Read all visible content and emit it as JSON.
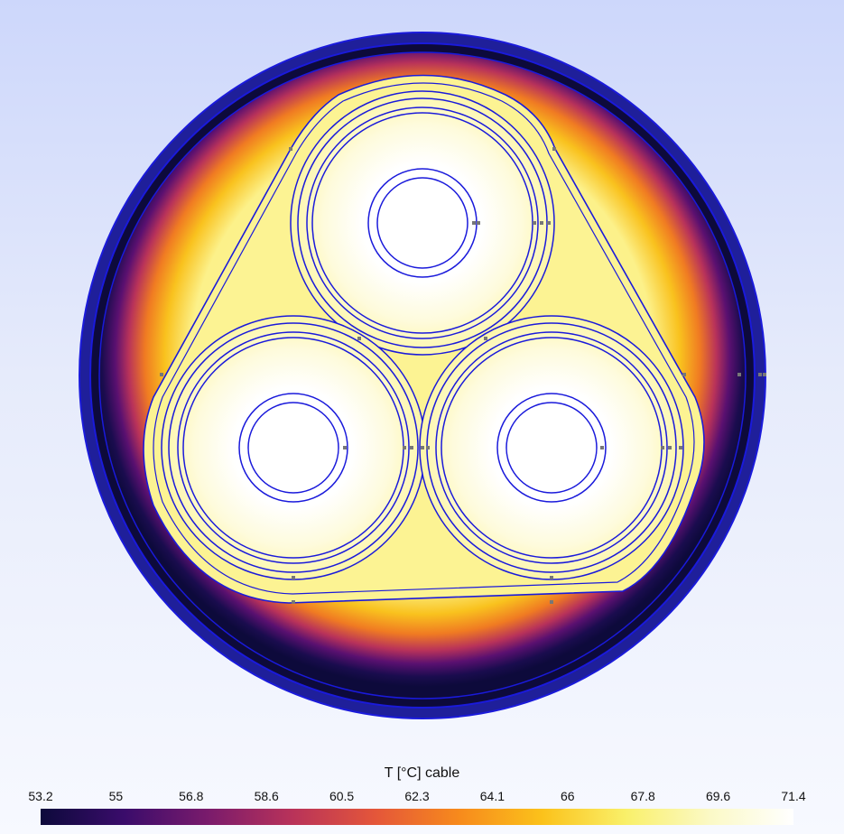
{
  "legend": {
    "title": "T [°C] cable",
    "ticks": [
      "53.2",
      "55",
      "56.8",
      "58.6",
      "60.5",
      "62.3",
      "64.1",
      "66",
      "67.8",
      "69.6",
      "71.4"
    ],
    "min": 53.2,
    "max": 71.4
  },
  "colors": {
    "outline": "#1a1adb",
    "colormap": [
      "#0d0a3b",
      "#3a0c6b",
      "#7a1b6c",
      "#b8325a",
      "#e4563a",
      "#f78a1c",
      "#fbc21b",
      "#f9f06a",
      "#fbf9c6",
      "#ffffff"
    ]
  }
}
